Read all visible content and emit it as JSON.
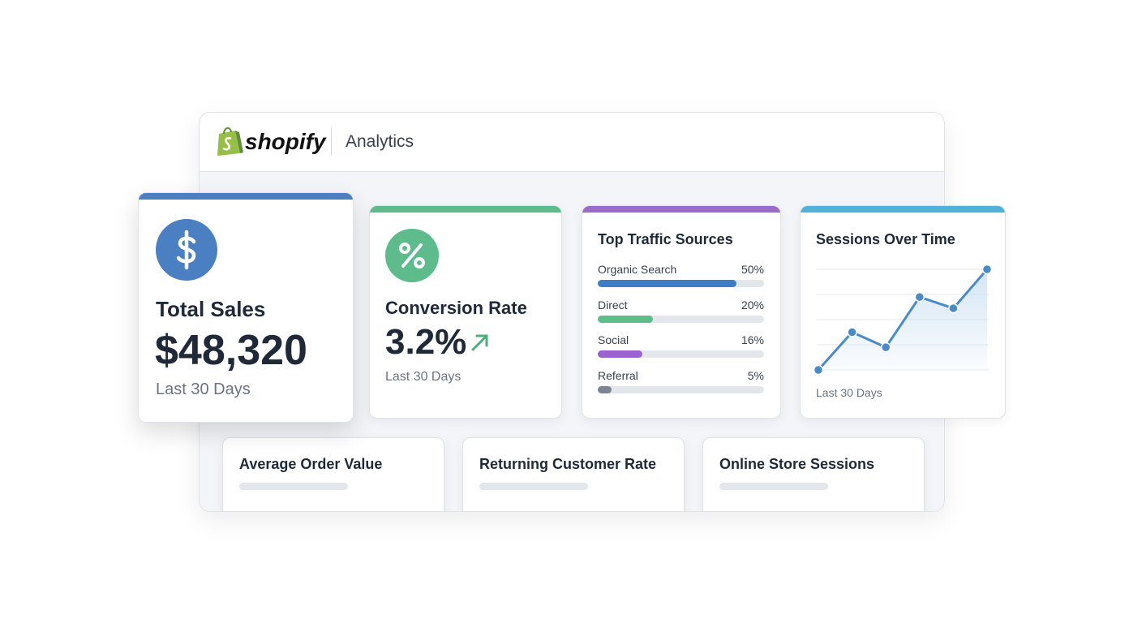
{
  "header": {
    "brand": "shopify",
    "section": "Analytics"
  },
  "total_sales": {
    "title": "Total Sales",
    "value": "$48,320",
    "period": "Last 30 Days"
  },
  "conversion_rate": {
    "title": "Conversion Rate",
    "value": "3.2%",
    "period": "Last 30 Days"
  },
  "traffic_sources": {
    "type": "bar",
    "title": "Top Traffic Sources",
    "categories": [
      "Organic Search",
      "Direct",
      "Social",
      "Referral"
    ],
    "values": [
      50,
      20,
      16,
      5
    ],
    "value_labels": [
      "50%",
      "20%",
      "16%",
      "5%"
    ],
    "colors": [
      "#3f7cc4",
      "#5cbf8a",
      "#9b63d0",
      "#7b8594"
    ],
    "xlim": [
      0,
      60
    ]
  },
  "sessions": {
    "type": "line",
    "title": "Sessions Over Time",
    "categories": [
      null,
      null,
      null,
      null,
      null,
      null
    ],
    "series": [
      {
        "color": "#4a8ac9",
        "values": [
          0,
          1.5,
          0.9,
          2.9,
          2.45,
          4
        ]
      }
    ],
    "ylim": [
      0,
      4
    ],
    "yticks": [
      0,
      1,
      2,
      3,
      4
    ],
    "grid": true,
    "period": "Last 30 Days"
  },
  "bottom_cards": [
    "Average Order Value",
    "Returning Customer Rate",
    "Online Store Sessions"
  ]
}
